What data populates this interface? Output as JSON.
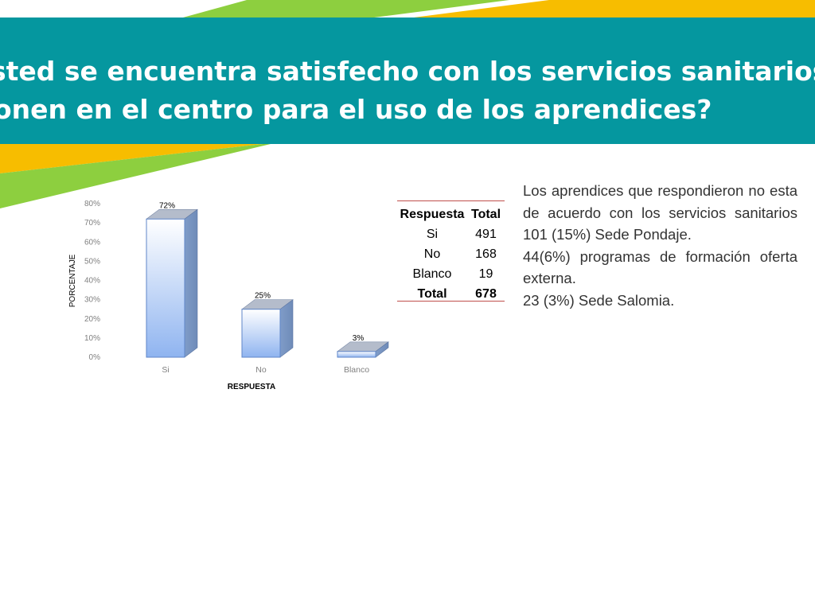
{
  "title": {
    "line1": "sted se encuentra satisfecho con los servicios sanitarios que se",
    "line2": "onen en el centro para el uso de los aprendices?"
  },
  "colors": {
    "band": "#05979f",
    "green": "#8dcf3f",
    "yellow": "#f7bd00",
    "bar_light": "#e9f2ff",
    "bar_dark": "#95b8f2",
    "table_rule": "#c0504d"
  },
  "chart_data": {
    "type": "bar",
    "categories": [
      "Si",
      "No",
      "Blanco"
    ],
    "values": [
      72,
      25,
      3
    ],
    "data_labels": [
      "72%",
      "25%",
      "3%"
    ],
    "ylabel": "PORCENTAJE",
    "xlabel": "RESPUESTA",
    "ylim": [
      0,
      80
    ],
    "yticks": [
      "0%",
      "10%",
      "20%",
      "30%",
      "40%",
      "50%",
      "60%",
      "70%",
      "80%"
    ],
    "style": "3d-column",
    "grid": false,
    "legend": "none"
  },
  "table": {
    "headers": [
      "Respuesta",
      "Total"
    ],
    "rows": [
      [
        "Si",
        "491"
      ],
      [
        "No",
        "168"
      ],
      [
        "Blanco",
        "19"
      ]
    ],
    "total": [
      "Total",
      "678"
    ]
  },
  "description": {
    "para1": "Los aprendices que respondieron no esta de acuerdo con los servicios sanitarios",
    "line_pondaje": "101 (15%) Sede Pondaje.",
    "para_programas": "44(6%) programas de formación oferta externa.",
    "line_salomia": "23 (3%) Sede Salomia."
  }
}
